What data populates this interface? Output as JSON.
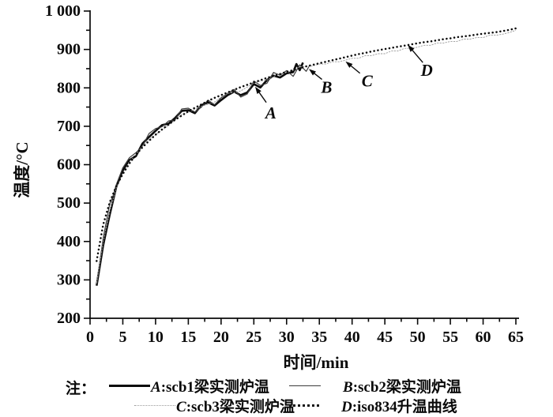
{
  "figure": {
    "background": "#ffffff",
    "ink_color": "#0a0a0a",
    "note_label": "注：",
    "ylabel": "温度/°C",
    "xlabel": "时间/min",
    "legend": {
      "items": [
        {
          "letter": "A",
          "text": ":scb1梁实测炉温",
          "style": "thick-solid"
        },
        {
          "letter": "B",
          "text": ":scb2梁实测炉温",
          "style": "thin-solid"
        },
        {
          "letter": "C",
          "text": ":scb3梁实测炉温",
          "style": "fine-dotted"
        },
        {
          "letter": "D",
          "text": ":iso834升温曲线",
          "style": "dotted"
        }
      ]
    }
  },
  "chart_data": {
    "type": "line",
    "title": "",
    "xlabel": "时间/min",
    "ylabel": "温度/°C",
    "xlim": [
      0,
      65
    ],
    "ylim": [
      200,
      1000
    ],
    "grid": false,
    "legend_position": "bottom",
    "x_ticks": [
      0,
      5,
      10,
      15,
      20,
      25,
      30,
      35,
      40,
      45,
      50,
      55,
      60,
      65
    ],
    "x_minor_ticks": [
      2.5,
      7.5,
      12.5,
      17.5,
      22.5,
      27.5,
      32.5,
      37.5,
      42.5,
      47.5,
      52.5,
      57.5,
      62.5
    ],
    "y_ticks": [
      200,
      300,
      400,
      500,
      600,
      700,
      800,
      900,
      1000
    ],
    "y_tick_labels": [
      "200",
      "300",
      "400",
      "500",
      "600",
      "700",
      "800",
      "900",
      "1 000"
    ],
    "y_minor_ticks": [
      250,
      350,
      450,
      550,
      650,
      750,
      850,
      950
    ],
    "series": [
      {
        "name": "A:scb1梁实测炉温",
        "style": "thick-solid",
        "color": "#0a0a0a",
        "points": [
          [
            1,
            285
          ],
          [
            2,
            390
          ],
          [
            3,
            470
          ],
          [
            4,
            542
          ],
          [
            5,
            585
          ],
          [
            6,
            612
          ],
          [
            7,
            622
          ],
          [
            8,
            655
          ],
          [
            9,
            672
          ],
          [
            10,
            688
          ],
          [
            11,
            703
          ],
          [
            12,
            707
          ],
          [
            13,
            722
          ],
          [
            14,
            740
          ],
          [
            15,
            742
          ],
          [
            16,
            734
          ],
          [
            17,
            755
          ],
          [
            18,
            762
          ],
          [
            19,
            754
          ],
          [
            20,
            768
          ],
          [
            21,
            781
          ],
          [
            22,
            790
          ],
          [
            23,
            781
          ],
          [
            24,
            788
          ],
          [
            25,
            810
          ],
          [
            26,
            801
          ],
          [
            27,
            820
          ],
          [
            28,
            832
          ],
          [
            29,
            827
          ],
          [
            30,
            838
          ],
          [
            31,
            841
          ],
          [
            31.5,
            862
          ],
          [
            32,
            846
          ],
          [
            32.5,
            866
          ]
        ]
      },
      {
        "name": "B:scb2梁实测炉温",
        "style": "thin-solid",
        "color": "#3c3c3c",
        "points": [
          [
            1,
            288
          ],
          [
            2,
            408
          ],
          [
            3,
            498
          ],
          [
            3.5,
            518
          ],
          [
            4,
            548
          ],
          [
            5,
            592
          ],
          [
            6,
            618
          ],
          [
            7,
            631
          ],
          [
            8,
            648
          ],
          [
            9,
            681
          ],
          [
            10,
            694
          ],
          [
            11,
            699
          ],
          [
            12,
            714
          ],
          [
            13,
            717
          ],
          [
            14,
            745
          ],
          [
            15,
            747
          ],
          [
            16,
            737
          ],
          [
            17,
            750
          ],
          [
            18,
            768
          ],
          [
            19,
            756
          ],
          [
            20,
            774
          ],
          [
            21,
            786
          ],
          [
            22,
            796
          ],
          [
            23,
            776
          ],
          [
            24,
            784
          ],
          [
            25,
            818
          ],
          [
            26,
            806
          ],
          [
            27,
            812
          ],
          [
            28,
            840
          ],
          [
            29,
            833
          ],
          [
            30,
            845
          ],
          [
            31,
            830
          ],
          [
            32,
            860
          ],
          [
            33,
            843
          ],
          [
            33.5,
            858
          ]
        ]
      },
      {
        "name": "C:scb3梁实测炉温",
        "style": "fine-dotted",
        "color": "#9a9a9a",
        "points": [
          [
            1,
            292
          ],
          [
            2,
            398
          ],
          [
            3,
            478
          ],
          [
            4,
            538
          ],
          [
            5,
            578
          ],
          [
            6,
            608
          ],
          [
            7,
            626
          ],
          [
            8,
            648
          ],
          [
            9,
            666
          ],
          [
            10,
            678
          ],
          [
            11,
            690
          ],
          [
            12,
            702
          ],
          [
            13,
            716
          ],
          [
            14,
            731
          ],
          [
            15,
            736
          ],
          [
            16,
            745
          ],
          [
            17,
            752
          ],
          [
            18,
            757
          ],
          [
            19,
            763
          ],
          [
            20,
            776
          ],
          [
            21,
            786
          ],
          [
            22,
            788
          ],
          [
            23,
            792
          ],
          [
            24,
            802
          ],
          [
            25,
            812
          ],
          [
            26,
            818
          ],
          [
            27,
            820
          ],
          [
            28,
            830
          ],
          [
            29,
            837
          ],
          [
            30,
            840
          ],
          [
            31,
            846
          ],
          [
            32,
            855
          ],
          [
            33,
            855
          ],
          [
            34,
            857
          ],
          [
            35,
            862
          ],
          [
            36,
            862
          ],
          [
            37,
            868
          ],
          [
            38,
            868
          ],
          [
            39,
            872
          ],
          [
            40,
            877
          ],
          [
            41,
            877
          ],
          [
            42,
            884
          ],
          [
            43,
            884
          ],
          [
            44,
            889
          ],
          [
            45,
            889
          ],
          [
            46,
            896
          ],
          [
            47,
            896
          ],
          [
            48,
            903
          ],
          [
            49,
            903
          ],
          [
            50,
            906
          ],
          [
            51,
            911
          ],
          [
            52,
            911
          ],
          [
            53,
            917
          ],
          [
            54,
            917
          ],
          [
            55,
            921
          ],
          [
            56,
            921
          ],
          [
            57,
            927
          ],
          [
            58,
            927
          ],
          [
            59,
            931
          ],
          [
            60,
            931
          ],
          [
            61,
            937
          ],
          [
            62,
            937
          ],
          [
            63,
            940
          ],
          [
            64,
            944
          ],
          [
            65,
            950
          ]
        ]
      },
      {
        "name": "D:iso834升温曲线",
        "style": "dotted",
        "color": "#0a0a0a",
        "points": [
          [
            1,
            349
          ],
          [
            2,
            444
          ],
          [
            3,
            502
          ],
          [
            4,
            544
          ],
          [
            5,
            576
          ],
          [
            6,
            603
          ],
          [
            7,
            626
          ],
          [
            8,
            645
          ],
          [
            9,
            662
          ],
          [
            10,
            678
          ],
          [
            11,
            692
          ],
          [
            12,
            705
          ],
          [
            13,
            717
          ],
          [
            14,
            728
          ],
          [
            15,
            739
          ],
          [
            16,
            748
          ],
          [
            17,
            757
          ],
          [
            18,
            766
          ],
          [
            19,
            774
          ],
          [
            20,
            781
          ],
          [
            21,
            788
          ],
          [
            22,
            795
          ],
          [
            23,
            802
          ],
          [
            24,
            808
          ],
          [
            25,
            814
          ],
          [
            26,
            820
          ],
          [
            27,
            826
          ],
          [
            28,
            831
          ],
          [
            29,
            836
          ],
          [
            30,
            842
          ],
          [
            31,
            846
          ],
          [
            32,
            851
          ],
          [
            33,
            856
          ],
          [
            34,
            860
          ],
          [
            35,
            864
          ],
          [
            36,
            868
          ],
          [
            37,
            872
          ],
          [
            38,
            876
          ],
          [
            39,
            880
          ],
          [
            40,
            884
          ],
          [
            41,
            888
          ],
          [
            42,
            891
          ],
          [
            43,
            895
          ],
          [
            44,
            898
          ],
          [
            45,
            901
          ],
          [
            46,
            904
          ],
          [
            47,
            907
          ],
          [
            48,
            910
          ],
          [
            49,
            913
          ],
          [
            50,
            916
          ],
          [
            51,
            919
          ],
          [
            52,
            921
          ],
          [
            53,
            924
          ],
          [
            54,
            927
          ],
          [
            55,
            929
          ],
          [
            56,
            932
          ],
          [
            57,
            934
          ],
          [
            58,
            936
          ],
          [
            59,
            939
          ],
          [
            60,
            941
          ],
          [
            61,
            943
          ],
          [
            62,
            945
          ],
          [
            63,
            948
          ],
          [
            64,
            951
          ],
          [
            65,
            955
          ]
        ]
      }
    ],
    "annotations": [
      {
        "letter": "A",
        "label_t": 27.6,
        "label_T": 735,
        "from_t": 26.9,
        "from_T": 762,
        "to_t": 25.2,
        "to_T": 803
      },
      {
        "letter": "B",
        "label_t": 36.1,
        "label_T": 802,
        "from_t": 35.4,
        "from_T": 822,
        "to_t": 33.4,
        "to_T": 849
      },
      {
        "letter": "C",
        "label_t": 42.3,
        "label_T": 818,
        "from_t": 41.2,
        "from_T": 838,
        "to_t": 39.0,
        "to_T": 869
      },
      {
        "letter": "D",
        "label_t": 51.4,
        "label_T": 846,
        "from_t": 50.8,
        "from_T": 866,
        "to_t": 48.5,
        "to_T": 912
      }
    ]
  }
}
